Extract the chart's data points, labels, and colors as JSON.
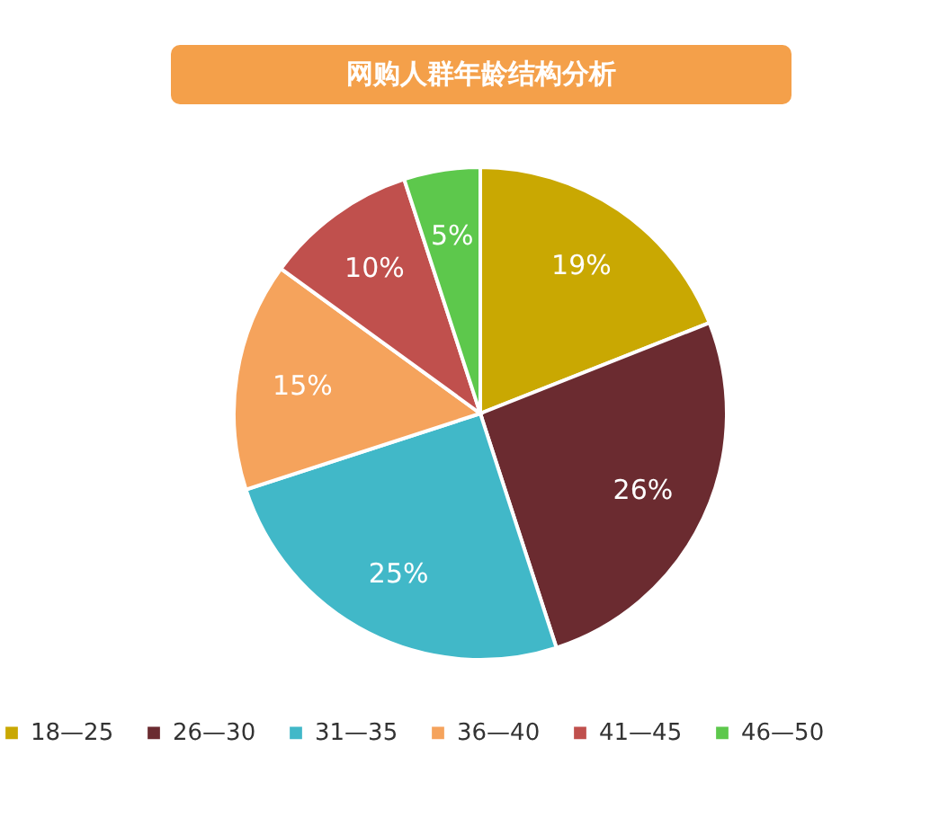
{
  "chart_data": {
    "type": "pie",
    "title": "网购人群年龄结构分析",
    "categories": [
      "18—25",
      "26—30",
      "31—35",
      "36—40",
      "41—45",
      "46—50"
    ],
    "values": [
      19,
      26,
      25,
      15,
      10,
      5
    ],
    "value_labels": [
      "19%",
      "26%",
      "25%",
      "15%",
      "10%",
      "5%"
    ],
    "colors": [
      "#c9a802",
      "#6b2b30",
      "#41b8c8",
      "#f5a35c",
      "#c0504d",
      "#5dc84c"
    ],
    "legend": "bottom"
  }
}
